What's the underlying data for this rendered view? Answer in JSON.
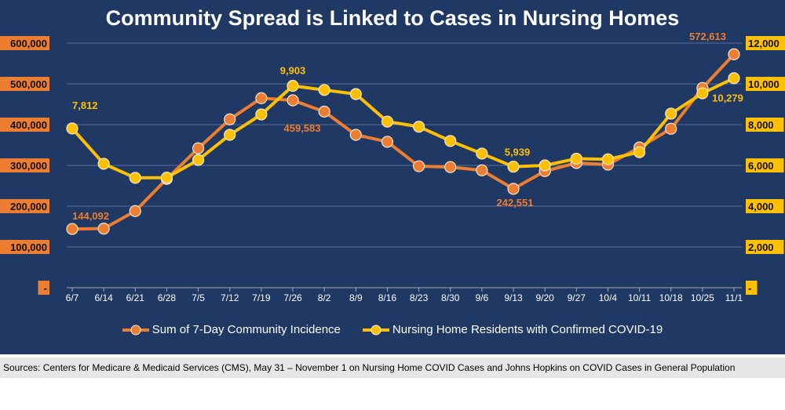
{
  "title": "Community Spread is Linked to Cases in Nursing Homes",
  "footer": "Sources: Centers for Medicare & Medicaid Services (CMS), May 31 – November 1 on Nursing Home COVID Cases and Johns Hopkins on COVID Cases in General Population",
  "colors": {
    "background": "#1f3864",
    "orange": "#ed7d31",
    "yellow": "#ffc000",
    "grid": "#5a6f96"
  },
  "chart_data": {
    "type": "line",
    "title": "Community Spread is Linked to Cases in Nursing Homes",
    "categories": [
      "6/7",
      "6/14",
      "6/21",
      "6/28",
      "7/5",
      "7/12",
      "7/19",
      "7/26",
      "8/2",
      "8/9",
      "8/16",
      "8/23",
      "8/30",
      "9/6",
      "9/13",
      "9/20",
      "9/27",
      "10/4",
      "10/11",
      "10/18",
      "10/25",
      "11/1"
    ],
    "y_left": {
      "range": [
        0,
        600000
      ],
      "ticks": [
        "-",
        "100,000",
        "200,000",
        "300,000",
        "400,000",
        "500,000",
        "600,000"
      ]
    },
    "y_right": {
      "range": [
        0,
        12000
      ],
      "ticks": [
        "-",
        "2,000",
        "4,000",
        "6,000",
        "8,000",
        "10,000",
        "12,000"
      ]
    },
    "grid": true,
    "legend_position": "bottom",
    "series": [
      {
        "name": "Sum of 7-Day Community Incidence",
        "axis": "left",
        "color": "#ed7d31",
        "values": [
          144092,
          145000,
          188000,
          267000,
          342000,
          413000,
          465000,
          459583,
          432000,
          375000,
          358000,
          298000,
          296000,
          288000,
          242551,
          286000,
          306000,
          302000,
          344000,
          390000,
          490000,
          572613
        ],
        "labels": {
          "0": "144,092",
          "7": "459,583",
          "14": "242,551",
          "21": "572,613"
        }
      },
      {
        "name": "Nursing Home Residents with Confirmed COVID-19",
        "axis": "right",
        "color": "#ffc000",
        "values": [
          7812,
          6080,
          5390,
          5400,
          6270,
          7500,
          8500,
          9903,
          9700,
          9500,
          8150,
          7900,
          7200,
          6580,
          5939,
          6000,
          6330,
          6300,
          6650,
          8540,
          9540,
          10279
        ],
        "labels": {
          "0": "7,812",
          "7": "9,903",
          "14": "5,939",
          "21": "10,279"
        }
      }
    ]
  }
}
